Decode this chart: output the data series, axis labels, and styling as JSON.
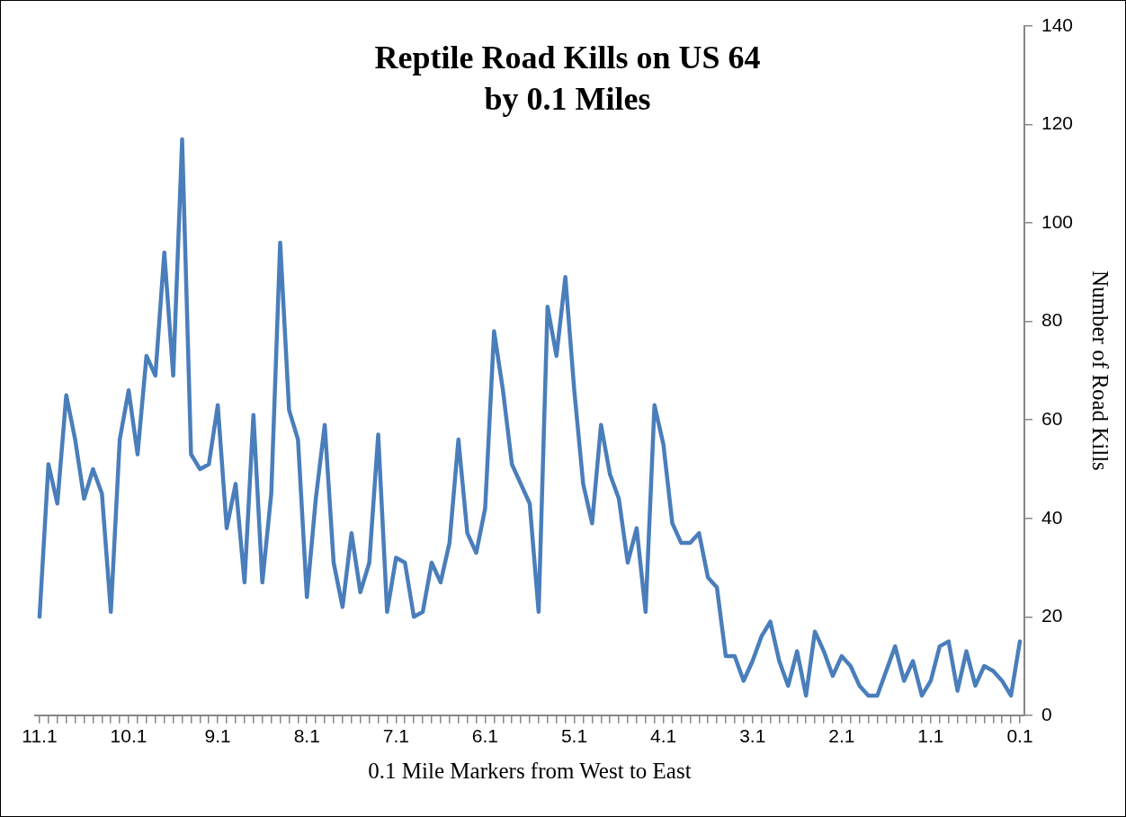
{
  "chart_data": {
    "type": "line",
    "title": "Reptile Road Kills on US 64\nby 0.1 Miles",
    "xlabel": "0.1 Mile Markers from West to East",
    "ylabel": "Number of Road Kills",
    "categories": [
      "11.1",
      null,
      null,
      null,
      null,
      null,
      null,
      null,
      null,
      null,
      "10.1",
      null,
      null,
      null,
      null,
      null,
      null,
      null,
      null,
      null,
      "9.1",
      null,
      null,
      null,
      null,
      null,
      null,
      null,
      null,
      null,
      "8.1",
      null,
      null,
      null,
      null,
      null,
      null,
      null,
      null,
      null,
      "7.1",
      null,
      null,
      null,
      null,
      null,
      null,
      null,
      null,
      null,
      "6.1",
      null,
      null,
      null,
      null,
      null,
      null,
      null,
      null,
      null,
      "5.1",
      null,
      null,
      null,
      null,
      null,
      null,
      null,
      null,
      null,
      "4.1",
      null,
      null,
      null,
      null,
      null,
      null,
      null,
      null,
      null,
      "3.1",
      null,
      null,
      null,
      null,
      null,
      null,
      null,
      null,
      null,
      "2.1",
      null,
      null,
      null,
      null,
      null,
      null,
      null,
      null,
      null,
      "1.1",
      null,
      null,
      null,
      null,
      null,
      null,
      null,
      null,
      null,
      "0.1"
    ],
    "series": [
      {
        "color": "#4a7ebb",
        "values": [
          20,
          51,
          43,
          65,
          56,
          44,
          50,
          45,
          21,
          56,
          66,
          53,
          73,
          69,
          94,
          69,
          117,
          53,
          50,
          51,
          63,
          38,
          47,
          27,
          61,
          27,
          45,
          96,
          62,
          56,
          24,
          44,
          59,
          31,
          22,
          37,
          25,
          31,
          57,
          21,
          32,
          31,
          20,
          21,
          31,
          27,
          35,
          56,
          37,
          33,
          42,
          78,
          66,
          51,
          47,
          43,
          21,
          83,
          73,
          89,
          66,
          47,
          39,
          59,
          49,
          44,
          31,
          38,
          21,
          63,
          55,
          39,
          35,
          35,
          37,
          28,
          26,
          12,
          12,
          7,
          11,
          16,
          19,
          11,
          6,
          13,
          4,
          17,
          13,
          8,
          12,
          10,
          6,
          4,
          4,
          9,
          14,
          7,
          11,
          4,
          7,
          14,
          15,
          5,
          13,
          6,
          10,
          9,
          7,
          4,
          15
        ]
      }
    ],
    "ylim": [
      0,
      140
    ],
    "yticks": [
      0,
      20,
      40,
      60,
      80,
      100,
      120,
      140
    ],
    "grid": false,
    "legend": false,
    "marker": "none",
    "line_style": "solid"
  }
}
